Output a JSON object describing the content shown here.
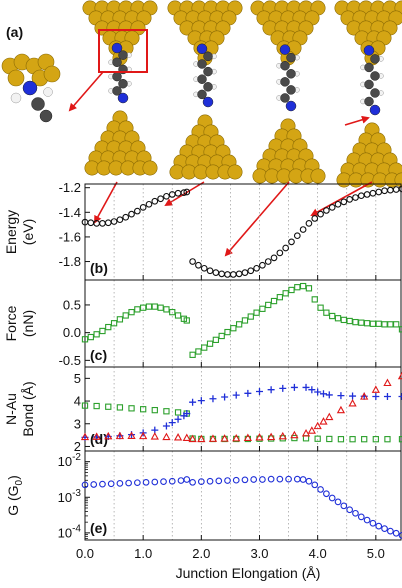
{
  "panel_a_label": "(a)",
  "colors": {
    "gold": "#d4a514",
    "gold_dark": "#8a6a05",
    "nitrogen": "#1f2fd8",
    "carbon": "#4a4a4a",
    "hydrogen": "#f2f2f2",
    "arrow": "#e01818",
    "energy": "#111111",
    "force": "#2ca02c",
    "bond_blue": "#1f2fd8",
    "bond_red": "#e01818",
    "bond_green": "#2ca02c",
    "conductance": "#1f2fd8"
  },
  "chart_data": [
    {
      "panel": "(b)",
      "type": "scatter",
      "ylabel_lines": [
        "Energy",
        "(eV)"
      ],
      "ylim": [
        -1.95,
        -1.17
      ],
      "yticks": [
        {
          "v": -1.2,
          "label": "-1.2"
        },
        {
          "v": -1.4,
          "label": "-1.4"
        },
        {
          "v": -1.6,
          "label": "-1.6"
        },
        {
          "v": -1.8,
          "label": "-1.8"
        }
      ],
      "series": [
        {
          "color_key": "energy",
          "marker": "circle",
          "x": [
            0.0,
            0.1,
            0.2,
            0.3,
            0.4,
            0.5,
            0.6,
            0.7,
            0.8,
            0.9,
            1.0,
            1.1,
            1.2,
            1.3,
            1.4,
            1.5,
            1.6,
            1.7,
            1.75
          ],
          "y": [
            -1.48,
            -1.485,
            -1.49,
            -1.49,
            -1.485,
            -1.475,
            -1.46,
            -1.44,
            -1.415,
            -1.39,
            -1.36,
            -1.335,
            -1.31,
            -1.29,
            -1.27,
            -1.255,
            -1.245,
            -1.24,
            -1.235
          ]
        },
        {
          "color_key": "energy",
          "marker": "circle",
          "x": [
            1.85,
            1.95,
            2.05,
            2.15,
            2.25,
            2.35,
            2.45,
            2.55,
            2.65,
            2.75,
            2.85,
            2.95,
            3.05,
            3.15,
            3.25,
            3.35,
            3.45,
            3.55,
            3.65,
            3.75,
            3.85,
            3.95,
            4.05,
            4.15,
            4.25,
            4.35,
            4.45,
            4.55,
            4.65,
            4.75,
            4.85,
            4.95,
            5.05,
            5.15,
            5.25,
            5.35,
            5.45
          ],
          "y": [
            -1.8,
            -1.83,
            -1.855,
            -1.875,
            -1.89,
            -1.9,
            -1.905,
            -1.905,
            -1.9,
            -1.89,
            -1.875,
            -1.855,
            -1.83,
            -1.8,
            -1.77,
            -1.73,
            -1.69,
            -1.64,
            -1.59,
            -1.54,
            -1.49,
            -1.45,
            -1.415,
            -1.385,
            -1.36,
            -1.335,
            -1.315,
            -1.295,
            -1.28,
            -1.265,
            -1.255,
            -1.245,
            -1.235,
            -1.225,
            -1.22,
            -1.215,
            -1.21
          ]
        }
      ]
    },
    {
      "panel": "(c)",
      "type": "scatter",
      "ylabel_lines": [
        "Force",
        "(nN)"
      ],
      "ylim": [
        -0.62,
        0.95
      ],
      "yticks": [
        {
          "v": 0.5,
          "label": "0.5"
        },
        {
          "v": 0.0,
          "label": "0.0"
        },
        {
          "v": -0.5,
          "label": "-0.5"
        }
      ],
      "series": [
        {
          "color_key": "force",
          "marker": "square",
          "x": [
            0.0,
            0.1,
            0.2,
            0.3,
            0.4,
            0.5,
            0.6,
            0.7,
            0.8,
            0.9,
            1.0,
            1.1,
            1.2,
            1.3,
            1.4,
            1.5,
            1.6,
            1.7,
            1.75
          ],
          "y": [
            -0.12,
            -0.08,
            -0.03,
            0.03,
            0.1,
            0.17,
            0.24,
            0.31,
            0.37,
            0.42,
            0.45,
            0.47,
            0.47,
            0.45,
            0.42,
            0.37,
            0.31,
            0.25,
            0.22
          ]
        },
        {
          "color_key": "force",
          "marker": "square",
          "x": [
            1.85,
            1.95,
            2.05,
            2.15,
            2.25,
            2.35,
            2.45,
            2.55,
            2.65,
            2.75,
            2.85,
            2.95,
            3.05,
            3.15,
            3.25,
            3.35,
            3.45,
            3.55,
            3.65,
            3.75,
            3.85,
            3.95,
            4.05,
            4.15,
            4.25,
            4.35,
            4.45,
            4.55,
            4.65,
            4.75,
            4.85,
            4.95,
            5.05,
            5.15,
            5.25,
            5.35,
            5.45
          ],
          "y": [
            -0.4,
            -0.34,
            -0.27,
            -0.2,
            -0.13,
            -0.06,
            0.01,
            0.08,
            0.15,
            0.22,
            0.29,
            0.36,
            0.43,
            0.5,
            0.57,
            0.64,
            0.71,
            0.77,
            0.82,
            0.84,
            0.8,
            0.6,
            0.45,
            0.36,
            0.3,
            0.26,
            0.23,
            0.21,
            0.19,
            0.18,
            0.17,
            0.16,
            0.16,
            0.15,
            0.15,
            0.15,
            0.06
          ]
        }
      ]
    },
    {
      "panel": "(d)",
      "type": "scatter",
      "ylabel_lines": [
        "N-Au",
        "Bond (Å)"
      ],
      "ylim": [
        1.8,
        5.5
      ],
      "yticks": [
        {
          "v": 5,
          "label": "5"
        },
        {
          "v": 4,
          "label": "4"
        },
        {
          "v": 3,
          "label": "3"
        },
        {
          "v": 2,
          "label": "2"
        }
      ],
      "series": [
        {
          "color_key": "bond_green",
          "marker": "square",
          "x": [
            0.0,
            0.2,
            0.4,
            0.6,
            0.8,
            1.0,
            1.2,
            1.4,
            1.6,
            1.75,
            1.85,
            2.0,
            2.2,
            2.4,
            2.6,
            2.8,
            3.0,
            3.2,
            3.4,
            3.6,
            3.8,
            4.0,
            4.2,
            4.4,
            4.6,
            4.8,
            5.0,
            5.2,
            5.45
          ],
          "y": [
            3.8,
            3.78,
            3.75,
            3.72,
            3.68,
            3.64,
            3.6,
            3.55,
            3.5,
            3.45,
            2.35,
            2.33,
            2.33,
            2.33,
            2.33,
            2.33,
            2.34,
            2.35,
            2.36,
            2.37,
            2.36,
            2.34,
            2.33,
            2.32,
            2.32,
            2.32,
            2.32,
            2.32,
            2.32
          ]
        },
        {
          "color_key": "bond_blue",
          "marker": "plus",
          "x": [
            0.0,
            0.2,
            0.4,
            0.6,
            0.8,
            1.0,
            1.2,
            1.4,
            1.5,
            1.6,
            1.7,
            1.75,
            1.85,
            2.0,
            2.2,
            2.4,
            2.6,
            2.8,
            3.0,
            3.2,
            3.4,
            3.6,
            3.8,
            3.9,
            4.0,
            4.1,
            4.2,
            4.4,
            4.6,
            4.8,
            5.0,
            5.2,
            5.45
          ],
          "y": [
            2.4,
            2.42,
            2.44,
            2.47,
            2.52,
            2.6,
            2.72,
            2.9,
            3.05,
            3.2,
            3.35,
            3.45,
            3.95,
            4.02,
            4.1,
            4.18,
            4.26,
            4.34,
            4.42,
            4.5,
            4.56,
            4.6,
            4.6,
            4.5,
            4.4,
            4.32,
            4.27,
            4.24,
            4.22,
            4.21,
            4.2,
            4.2,
            4.2
          ]
        },
        {
          "color_key": "bond_red",
          "marker": "triangle",
          "x": [
            0.0,
            0.2,
            0.4,
            0.6,
            0.8,
            1.0,
            1.2,
            1.4,
            1.6,
            1.75,
            1.85,
            2.0,
            2.2,
            2.4,
            2.6,
            2.8,
            3.0,
            3.2,
            3.4,
            3.6,
            3.8,
            3.9,
            4.0,
            4.1,
            4.2,
            4.4,
            4.6,
            4.8,
            5.0,
            5.2,
            5.45
          ],
          "y": [
            2.42,
            2.43,
            2.45,
            2.46,
            2.47,
            2.46,
            2.44,
            2.42,
            2.4,
            2.38,
            2.33,
            2.33,
            2.34,
            2.35,
            2.36,
            2.38,
            2.4,
            2.42,
            2.45,
            2.5,
            2.58,
            2.7,
            2.9,
            3.1,
            3.3,
            3.6,
            3.9,
            4.2,
            4.5,
            4.8,
            5.1
          ]
        }
      ]
    },
    {
      "panel": "(e)",
      "type": "scatter",
      "log_y": true,
      "ylabel_lines": [
        "G (G",
        "0",
        ")"
      ],
      "ylim_log10": [
        -4.2,
        -1.7
      ],
      "yticks": [
        {
          "v": -2,
          "base": "10",
          "exp": "-2"
        },
        {
          "v": -3,
          "base": "10",
          "exp": "-3"
        },
        {
          "v": -4,
          "base": "10",
          "exp": "-4"
        }
      ],
      "xlabel": "Junction Elongation (Å)",
      "xticks": [
        {
          "v": 0.0,
          "label": "0.0"
        },
        {
          "v": 1.0,
          "label": "1.0"
        },
        {
          "v": 2.0,
          "label": "2.0"
        },
        {
          "v": 3.0,
          "label": "3.0"
        },
        {
          "v": 4.0,
          "label": "4.0"
        },
        {
          "v": 5.0,
          "label": "5.0"
        }
      ],
      "series": [
        {
          "color_key": "conductance",
          "marker": "circle",
          "x": [
            0.0,
            0.15,
            0.3,
            0.45,
            0.6,
            0.75,
            0.9,
            1.05,
            1.2,
            1.35,
            1.5,
            1.65,
            1.75,
            1.85,
            2.0,
            2.15,
            2.3,
            2.45,
            2.6,
            2.75,
            2.9,
            3.05,
            3.2,
            3.35,
            3.5,
            3.65,
            3.75,
            3.85,
            3.95,
            4.05,
            4.15,
            4.25,
            4.35,
            4.45,
            4.55,
            4.65,
            4.75,
            4.85,
            4.95,
            5.05,
            5.15,
            5.25,
            5.35,
            5.45
          ],
          "y_log10": [
            -2.65,
            -2.64,
            -2.63,
            -2.62,
            -2.61,
            -2.6,
            -2.59,
            -2.58,
            -2.57,
            -2.56,
            -2.55,
            -2.53,
            -2.5,
            -2.58,
            -2.56,
            -2.55,
            -2.54,
            -2.53,
            -2.52,
            -2.51,
            -2.5,
            -2.5,
            -2.49,
            -2.49,
            -2.49,
            -2.49,
            -2.5,
            -2.55,
            -2.65,
            -2.78,
            -2.9,
            -3.02,
            -3.13,
            -3.24,
            -3.35,
            -3.45,
            -3.55,
            -3.64,
            -3.73,
            -3.81,
            -3.88,
            -3.95,
            -4.01,
            -4.07
          ]
        }
      ]
    }
  ]
}
